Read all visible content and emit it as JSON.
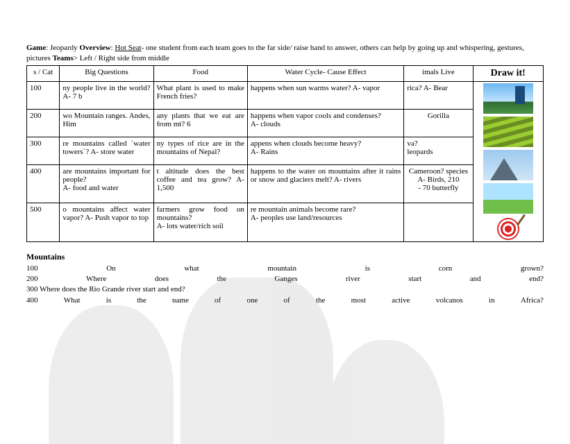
{
  "intro": {
    "game_label": "Game",
    "game_value": ": Jeopardy ",
    "overview_label": "Overview",
    "overview_value": ": ",
    "hotseat_label": "Hot Seat",
    "hotseat_desc": "- one student from each team goes to the far side/ raise hand to answer, others can help by going up and whispering, gestures, pictures  ",
    "teams_label": "Teams",
    "teams_value": "> Left / Right side from middle"
  },
  "headers": {
    "pts": "s / Cat",
    "bq": "Big Questions",
    "food": "Food",
    "wc": "Water Cycle- Cause Effect",
    "al": "imals Live",
    "draw": "Draw it!"
  },
  "rows": [
    {
      "pts": "100",
      "bq": "ny people live in the world? A- 7 b",
      "food": "What plant is used to make French fries?",
      "wc": "happens when sun warms water? A- vapor",
      "al": "rica? A- Bear"
    },
    {
      "pts": "200",
      "bq": "wo Mountain ranges. Andes, Him",
      "food": "any plants that we eat are from mt? 6",
      "wc": "happens when vapor cools and condenses?\nA- clouds",
      "al": "Gorilla"
    },
    {
      "pts": "300",
      "bq": "re mountains called `water towers`? A- store water",
      "food": "ny types of rice are in the mountains of Nepal?",
      "wc": "appens when clouds become heavy?\nA- Rains",
      "al": "va?\nleopards"
    },
    {
      "pts": "400",
      "bq": "are mountains important for people?\nA- food and water",
      "food": "t altitude does the best coffee and tea grow? A- 1,500",
      "wc": "happens to the water on mountains after it rains or snow and glaciers melt? A- rivers",
      "al": "Cameroon? species\nA- Birds, 210\n- 70 butterfly"
    },
    {
      "pts": "500",
      "bq": "o mountains affect water vapor? A- Push vapor to top",
      "food": "farmers grow food on mountains?\nA- lots water/rich soil",
      "wc": "re mountain animals become rare?\nA- peoples use land/resources",
      "al": ""
    }
  ],
  "mountains": {
    "title": "Mountains",
    "lines": [
      [
        "100",
        "On",
        "what",
        "mountain",
        "is",
        "corn",
        "grown?"
      ],
      [
        "200",
        "Where",
        "does",
        "the",
        "Ganges",
        "river",
        "start",
        "and",
        "end?"
      ],
      [
        "300 Where does the Rio Grande river start and end?"
      ],
      [
        "400",
        "What",
        "is",
        "the",
        "name",
        "of",
        "one",
        "of",
        "the",
        "most",
        "active",
        "volcanos",
        "in",
        "Africa?"
      ]
    ]
  }
}
